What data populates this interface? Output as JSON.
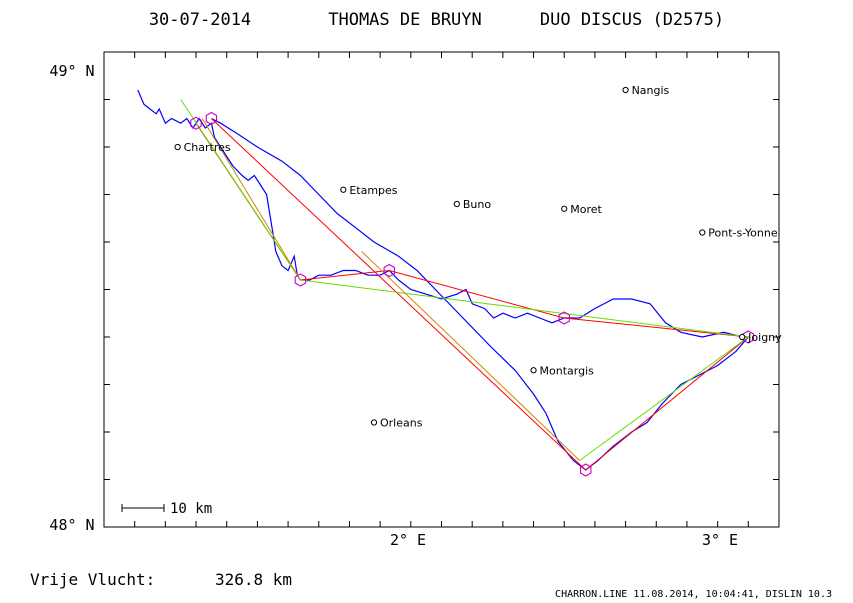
{
  "header": {
    "date": "30-07-2014",
    "pilot": "THOMAS DE BRUYN",
    "glider": "DUO DISCUS (D2575)"
  },
  "axes": {
    "y_top_label": "49° N",
    "y_bottom_label": "48° N",
    "x_label_2": "2° E",
    "x_label_3": "3° E"
  },
  "scale_bar": {
    "label": "10 km"
  },
  "distance": {
    "label": "Vrije Vlucht:",
    "value": "326.8 km"
  },
  "footer": {
    "text": "CHARRON.LINE 11.08.2014, 10:04:41, DISLIN 10.3"
  },
  "colors": {
    "track": "#0000ff",
    "task_red": "#ff0000",
    "task_green": "#66dd00",
    "task_orange": "#cc8800",
    "turnpoint": "#cc00cc",
    "frame": "#000000"
  },
  "places": [
    {
      "name": "Nangis",
      "lon": 2.7,
      "lat": 48.92
    },
    {
      "name": "Chartres",
      "lon": 1.24,
      "lat": 48.8
    },
    {
      "name": "Etampes",
      "lon": 1.78,
      "lat": 48.71
    },
    {
      "name": "Buno",
      "lon": 2.15,
      "lat": 48.68
    },
    {
      "name": "Moret",
      "lon": 2.5,
      "lat": 48.67
    },
    {
      "name": "Pont-s-Yonne",
      "lon": 2.95,
      "lat": 48.62
    },
    {
      "name": "Joigny",
      "lon": 3.08,
      "lat": 48.4
    },
    {
      "name": "Montargis",
      "lon": 2.4,
      "lat": 48.33
    },
    {
      "name": "Orleans",
      "lon": 1.88,
      "lat": 48.22
    }
  ],
  "turnpoints": [
    {
      "lon": 1.3,
      "lat": 48.85
    },
    {
      "lon": 1.35,
      "lat": 48.86
    },
    {
      "lon": 1.64,
      "lat": 48.52
    },
    {
      "lon": 1.93,
      "lat": 48.54
    },
    {
      "lon": 2.5,
      "lat": 48.44
    },
    {
      "lon": 3.1,
      "lat": 48.4
    },
    {
      "lon": 2.57,
      "lat": 48.12
    }
  ],
  "task_lines": [
    {
      "color": "task_red",
      "points": [
        [
          1.3,
          48.85
        ],
        [
          1.64,
          48.52
        ],
        [
          1.93,
          48.54
        ],
        [
          2.5,
          48.44
        ],
        [
          3.1,
          48.4
        ],
        [
          2.57,
          48.12
        ],
        [
          1.35,
          48.86
        ]
      ]
    },
    {
      "color": "task_green",
      "points": [
        [
          1.25,
          48.9
        ],
        [
          1.64,
          48.52
        ],
        [
          3.1,
          48.4
        ],
        [
          2.55,
          48.14
        ]
      ]
    },
    {
      "color": "task_orange",
      "points": [
        [
          1.32,
          48.86
        ],
        [
          1.64,
          48.52
        ]
      ]
    },
    {
      "color": "task_orange",
      "points": [
        [
          1.84,
          48.58
        ],
        [
          2.55,
          48.14
        ]
      ]
    }
  ],
  "track": [
    [
      1.11,
      48.92
    ],
    [
      1.13,
      48.89
    ],
    [
      1.15,
      48.88
    ],
    [
      1.17,
      48.87
    ],
    [
      1.18,
      48.88
    ],
    [
      1.2,
      48.85
    ],
    [
      1.22,
      48.86
    ],
    [
      1.25,
      48.85
    ],
    [
      1.27,
      48.86
    ],
    [
      1.29,
      48.84
    ],
    [
      1.31,
      48.86
    ],
    [
      1.33,
      48.84
    ],
    [
      1.35,
      48.85
    ],
    [
      1.36,
      48.82
    ],
    [
      1.38,
      48.8
    ],
    [
      1.4,
      48.78
    ],
    [
      1.42,
      48.76
    ],
    [
      1.45,
      48.74
    ],
    [
      1.47,
      48.73
    ],
    [
      1.49,
      48.74
    ],
    [
      1.51,
      48.72
    ],
    [
      1.53,
      48.7
    ],
    [
      1.54,
      48.66
    ],
    [
      1.55,
      48.62
    ],
    [
      1.56,
      48.58
    ],
    [
      1.58,
      48.55
    ],
    [
      1.6,
      48.54
    ],
    [
      1.62,
      48.57
    ],
    [
      1.63,
      48.53
    ],
    [
      1.64,
      48.52
    ],
    [
      1.67,
      48.52
    ],
    [
      1.7,
      48.53
    ],
    [
      1.74,
      48.53
    ],
    [
      1.78,
      48.54
    ],
    [
      1.82,
      48.54
    ],
    [
      1.86,
      48.53
    ],
    [
      1.9,
      48.53
    ],
    [
      1.93,
      48.54
    ],
    [
      1.96,
      48.52
    ],
    [
      2.0,
      48.5
    ],
    [
      2.05,
      48.49
    ],
    [
      2.1,
      48.48
    ],
    [
      2.15,
      48.49
    ],
    [
      2.18,
      48.5
    ],
    [
      2.2,
      48.47
    ],
    [
      2.24,
      48.46
    ],
    [
      2.27,
      48.44
    ],
    [
      2.3,
      48.45
    ],
    [
      2.34,
      48.44
    ],
    [
      2.38,
      48.45
    ],
    [
      2.42,
      48.44
    ],
    [
      2.46,
      48.43
    ],
    [
      2.5,
      48.44
    ],
    [
      2.55,
      48.44
    ],
    [
      2.6,
      48.46
    ],
    [
      2.66,
      48.48
    ],
    [
      2.72,
      48.48
    ],
    [
      2.78,
      48.47
    ],
    [
      2.83,
      48.43
    ],
    [
      2.88,
      48.41
    ],
    [
      2.95,
      48.4
    ],
    [
      3.02,
      48.41
    ],
    [
      3.08,
      48.4
    ],
    [
      3.1,
      48.4
    ],
    [
      3.06,
      48.37
    ],
    [
      3.0,
      48.34
    ],
    [
      2.94,
      48.32
    ],
    [
      2.88,
      48.3
    ],
    [
      2.82,
      48.26
    ],
    [
      2.77,
      48.22
    ],
    [
      2.72,
      48.2
    ],
    [
      2.66,
      48.17
    ],
    [
      2.61,
      48.14
    ],
    [
      2.57,
      48.12
    ],
    [
      2.53,
      48.14
    ],
    [
      2.48,
      48.18
    ],
    [
      2.44,
      48.24
    ],
    [
      2.4,
      48.28
    ],
    [
      2.34,
      48.33
    ],
    [
      2.26,
      48.38
    ],
    [
      2.2,
      48.42
    ],
    [
      2.14,
      48.46
    ],
    [
      2.08,
      48.5
    ],
    [
      2.02,
      48.54
    ],
    [
      1.96,
      48.57
    ],
    [
      1.88,
      48.6
    ],
    [
      1.82,
      48.63
    ],
    [
      1.76,
      48.66
    ],
    [
      1.7,
      48.7
    ],
    [
      1.64,
      48.74
    ],
    [
      1.58,
      48.77
    ],
    [
      1.5,
      48.8
    ],
    [
      1.43,
      48.83
    ],
    [
      1.38,
      48.85
    ],
    [
      1.35,
      48.86
    ]
  ]
}
